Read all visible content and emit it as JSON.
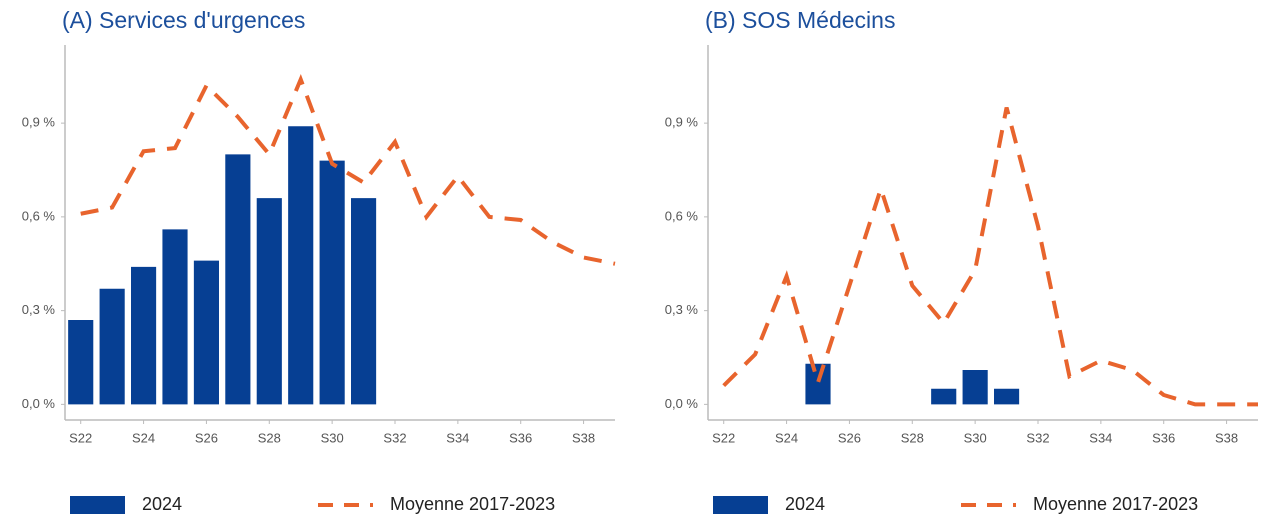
{
  "chart_data": [
    {
      "type": "combo",
      "title": "(A) Services d'urgences",
      "x": [
        22,
        23,
        24,
        25,
        26,
        27,
        28,
        29,
        30,
        31,
        32,
        33,
        34,
        35,
        36,
        37,
        38,
        39
      ],
      "xlim": [
        21.5,
        39
      ],
      "ylim": [
        -0.05,
        1.15
      ],
      "xticks": [
        {
          "value": 22,
          "label": "S22"
        },
        {
          "value": 24,
          "label": "S24"
        },
        {
          "value": 26,
          "label": "S26"
        },
        {
          "value": 28,
          "label": "S28"
        },
        {
          "value": 30,
          "label": "S30"
        },
        {
          "value": 32,
          "label": "S32"
        },
        {
          "value": 34,
          "label": "S34"
        },
        {
          "value": 36,
          "label": "S36"
        },
        {
          "value": 38,
          "label": "S38"
        }
      ],
      "yticks": [
        {
          "value": 0,
          "label": "0,0 %"
        },
        {
          "value": 0.3,
          "label": "0,3 %"
        },
        {
          "value": 0.6,
          "label": "0,6 %"
        },
        {
          "value": 0.9,
          "label": "0,9 %"
        }
      ],
      "series": [
        {
          "name": "2024",
          "kind": "bar",
          "color": "#063f93",
          "values": [
            0.27,
            0.37,
            0.44,
            0.56,
            0.46,
            0.8,
            0.66,
            0.89,
            0.78,
            0.66,
            null,
            null,
            null,
            null,
            null,
            null,
            null,
            null
          ]
        },
        {
          "name": "Moyenne 2017-2023",
          "kind": "line",
          "dashed": true,
          "color": "#e8642d",
          "values": [
            0.61,
            0.63,
            0.81,
            0.82,
            1.02,
            0.92,
            0.8,
            1.04,
            0.77,
            0.71,
            0.84,
            0.6,
            0.73,
            0.6,
            0.59,
            0.52,
            0.47,
            0.45
          ]
        }
      ]
    },
    {
      "type": "combo",
      "title": "(B) SOS Médecins",
      "x": [
        22,
        23,
        24,
        25,
        26,
        27,
        28,
        29,
        30,
        31,
        32,
        33,
        34,
        35,
        36,
        37,
        38,
        39
      ],
      "xlim": [
        21.5,
        39
      ],
      "ylim": [
        -0.05,
        1.15
      ],
      "xticks": [
        {
          "value": 22,
          "label": "S22"
        },
        {
          "value": 24,
          "label": "S24"
        },
        {
          "value": 26,
          "label": "S26"
        },
        {
          "value": 28,
          "label": "S28"
        },
        {
          "value": 30,
          "label": "S30"
        },
        {
          "value": 32,
          "label": "S32"
        },
        {
          "value": 34,
          "label": "S34"
        },
        {
          "value": 36,
          "label": "S36"
        },
        {
          "value": 38,
          "label": "S38"
        }
      ],
      "yticks": [
        {
          "value": 0,
          "label": "0,0 %"
        },
        {
          "value": 0.3,
          "label": "0,3 %"
        },
        {
          "value": 0.6,
          "label": "0,6 %"
        },
        {
          "value": 0.9,
          "label": "0,9 %"
        }
      ],
      "series": [
        {
          "name": "2024",
          "kind": "bar",
          "color": "#063f93",
          "values": [
            null,
            null,
            null,
            0.13,
            null,
            null,
            null,
            0.05,
            0.11,
            0.05,
            null,
            null,
            null,
            null,
            null,
            null,
            null,
            null
          ]
        },
        {
          "name": "Moyenne 2017-2023",
          "kind": "line",
          "dashed": true,
          "color": "#e8642d",
          "values": [
            0.06,
            0.16,
            0.41,
            0.07,
            0.38,
            0.69,
            0.38,
            0.26,
            0.43,
            0.95,
            0.57,
            0.09,
            0.14,
            0.11,
            0.03,
            0.0,
            0.0,
            0.0
          ]
        }
      ]
    }
  ]
}
